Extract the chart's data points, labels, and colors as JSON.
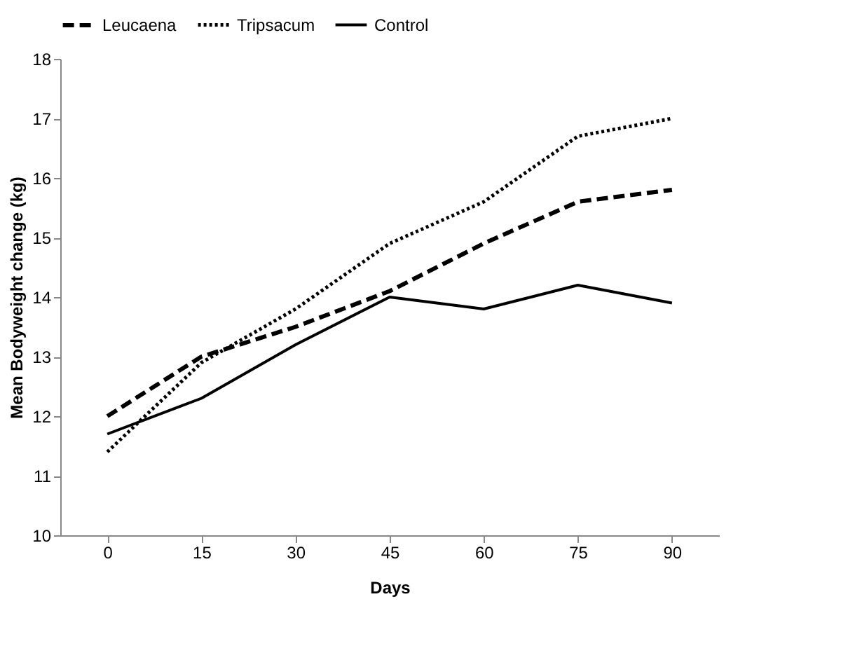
{
  "chart_data": {
    "type": "line",
    "xlabel": "Days",
    "ylabel": "Mean Bodyweight change (kg)",
    "categories": [
      "0",
      "15",
      "30",
      "45",
      "60",
      "75",
      "90"
    ],
    "series": [
      {
        "name": "Leucaena",
        "color": "#000000",
        "line_style": "dashed",
        "values": [
          12.0,
          13.0,
          13.5,
          14.1,
          14.9,
          15.6,
          15.8
        ]
      },
      {
        "name": "Tripsacum",
        "color": "#000000",
        "line_style": "dotted",
        "values": [
          11.4,
          12.9,
          13.8,
          14.9,
          15.6,
          16.7,
          17.0
        ]
      },
      {
        "name": "Control",
        "color": "#000000",
        "line_style": "solid",
        "values": [
          11.7,
          12.3,
          13.2,
          14.0,
          13.8,
          14.2,
          13.9
        ]
      }
    ],
    "ylim": [
      10,
      18
    ],
    "yticks": [
      10,
      11,
      12,
      13,
      14,
      15,
      16,
      17,
      18
    ],
    "grid": false,
    "legend": "top",
    "marker": "none"
  }
}
